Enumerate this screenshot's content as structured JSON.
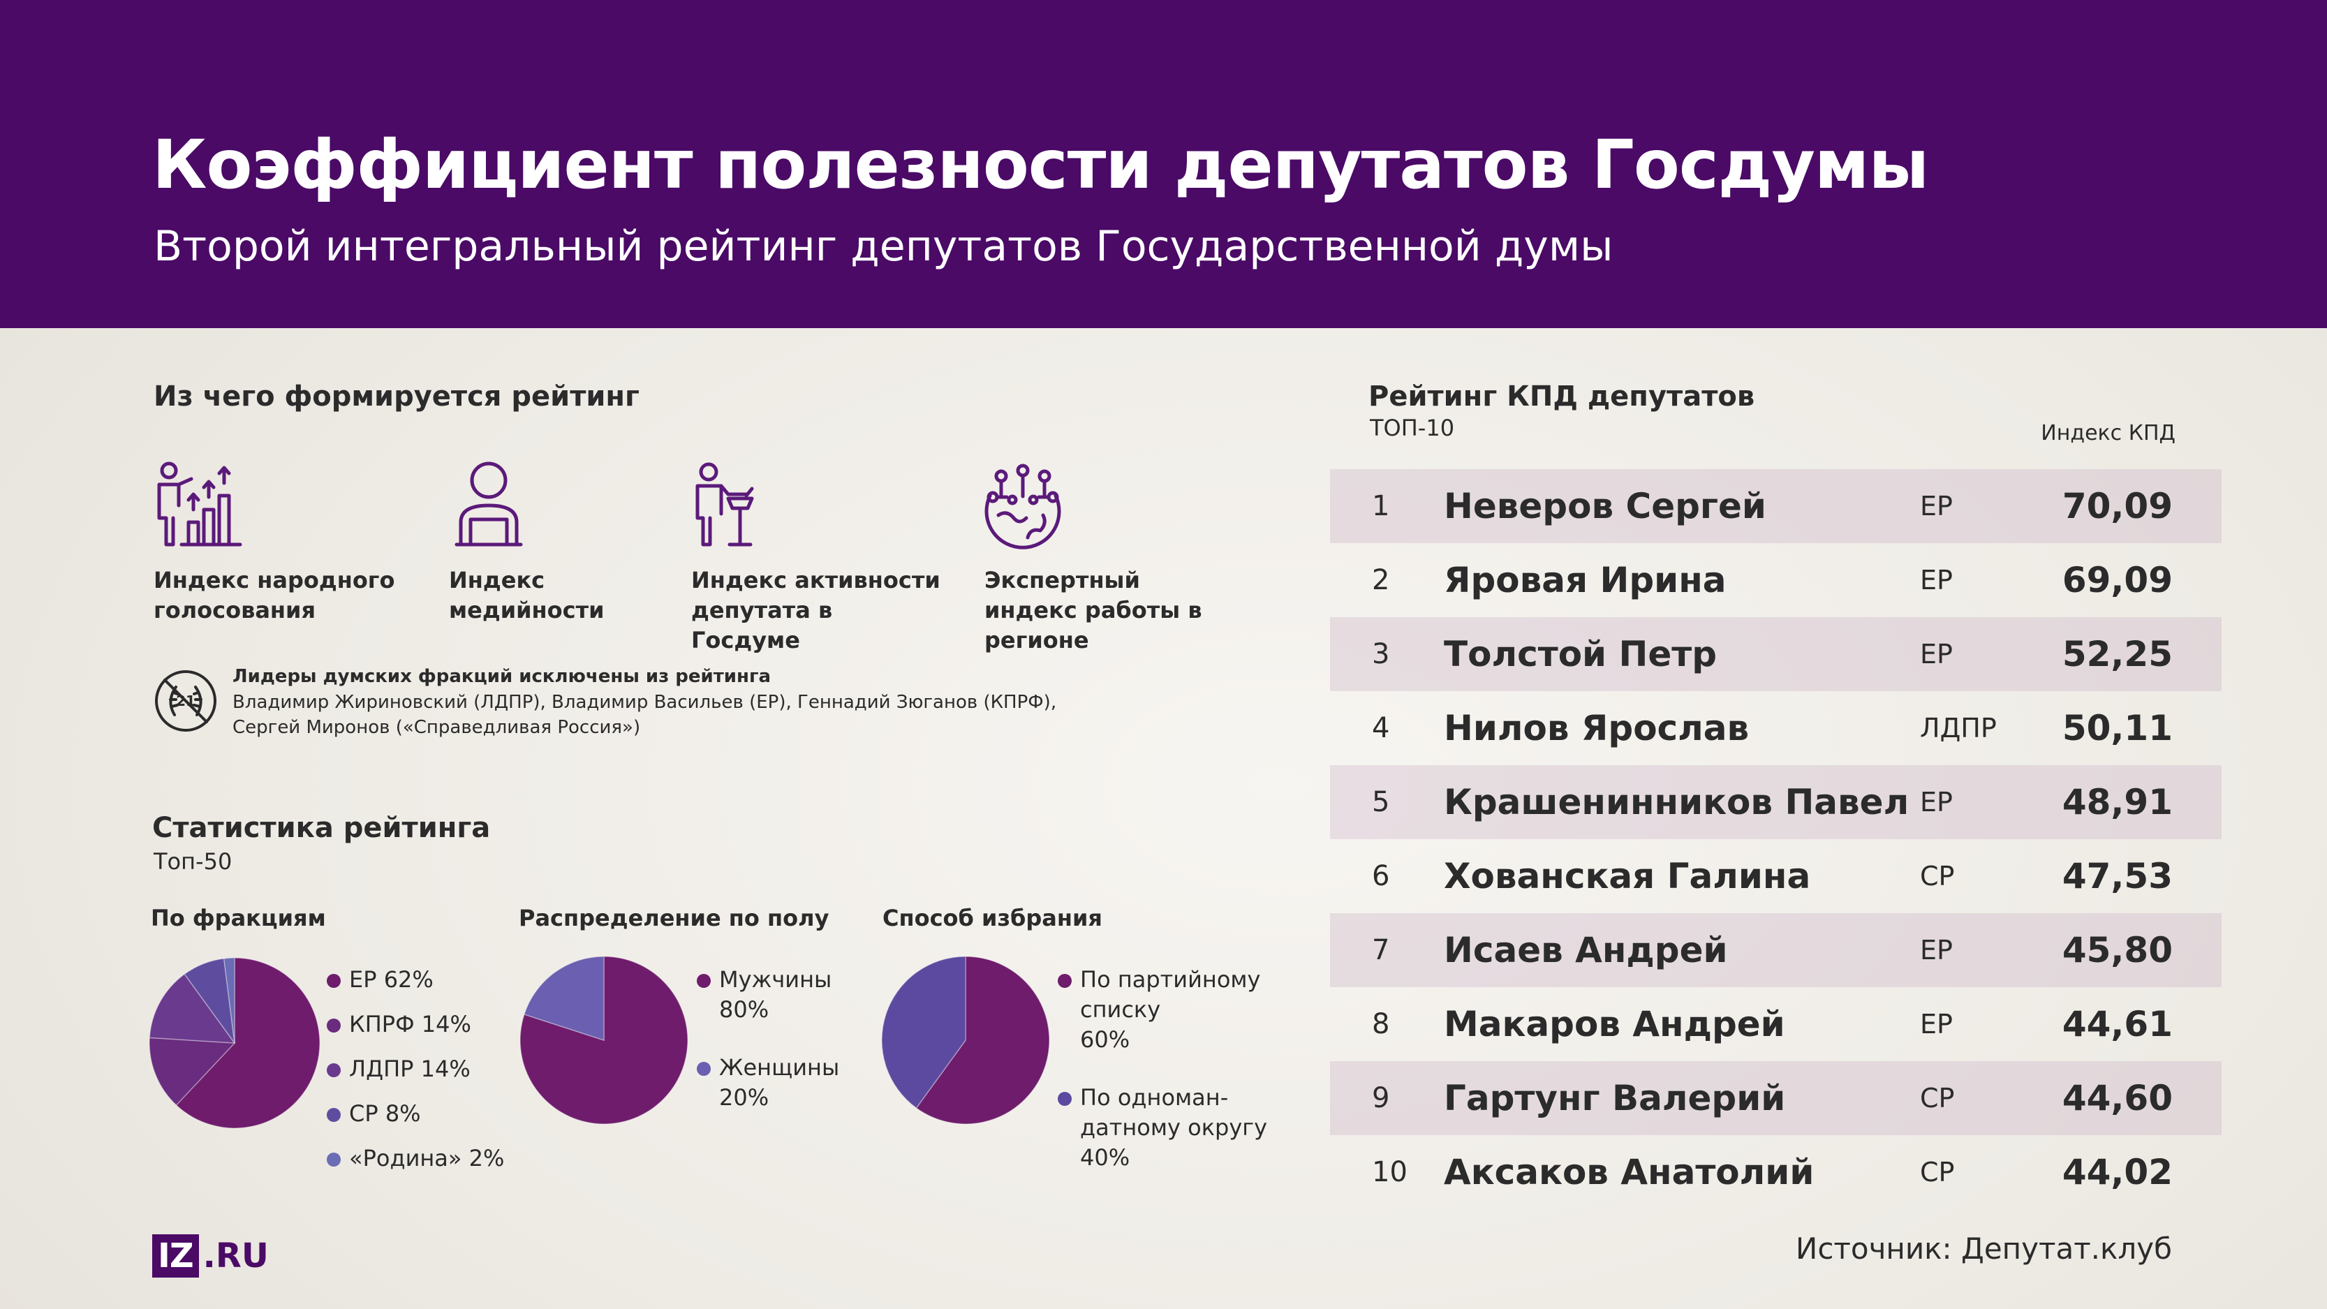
{
  "header": {
    "title": "Коэффициент полезности депутатов Госдумы",
    "subtitle": "Второй интегральный рейтинг депутатов Государственной думы"
  },
  "composition": {
    "title": "Из чего формируется рейтинг",
    "items": [
      {
        "icon": "people-voting-growth-icon",
        "label": "Индекс народного голосования"
      },
      {
        "icon": "person-at-laptop-icon",
        "label": "Индекс медийности"
      },
      {
        "icon": "speaker-at-podium-icon",
        "label": "Индекс активности депутата в Госдуме"
      },
      {
        "icon": "globe-network-icon",
        "label": "Экспертный индекс работы в регионе"
      }
    ],
    "exclusion": {
      "icon": "crossed-out-laurel-icon",
      "title": "Лидеры думских фракций исключены из рейтинга",
      "text": "Владимир Жириновский (ЛДПР), Владимир Васильев (ЕР), Геннадий Зюганов (КПРФ), Сергей Миронов («Справедливая Россия»)"
    }
  },
  "stats": {
    "title": "Статистика рейтинга",
    "subtitle": "Топ-50"
  },
  "chart_data": [
    {
      "type": "pie",
      "title": "По фракциям",
      "categories": [
        "ЕР",
        "КПРФ",
        "ЛДПР",
        "СР",
        "«Родина»"
      ],
      "values": [
        62,
        14,
        14,
        8,
        2
      ],
      "labels": [
        "ЕР 62%",
        "КПРФ 14%",
        "ЛДПР 14%",
        "СР 8%",
        "«Родина» 2%"
      ],
      "colors": [
        "#6e1c6b",
        "#6a2c7e",
        "#6a3a8e",
        "#5e4d9f",
        "#6a6cb5"
      ]
    },
    {
      "type": "pie",
      "title": "Распределение по полу",
      "categories": [
        "Мужчины",
        "Женщины"
      ],
      "values": [
        80,
        20
      ],
      "labels": [
        [
          "Мужчины",
          "80%"
        ],
        [
          "Женщины",
          "20%"
        ]
      ],
      "colors": [
        "#6e1c6b",
        "#6a5fb0"
      ]
    },
    {
      "type": "pie",
      "title": "Способ избрания",
      "categories": [
        "По партийному списку",
        "По одномандатному округу"
      ],
      "values": [
        60,
        40
      ],
      "labels": [
        [
          "По партийному",
          "списку",
          "60%"
        ],
        [
          "По одноман-",
          "датному округу",
          "40%"
        ]
      ],
      "colors": [
        "#6e1c6b",
        "#5c4aa0"
      ]
    },
    {
      "type": "table",
      "title": "Рейтинг КПД депутатов",
      "subtitle": "ТОП-10",
      "value_label": "Индекс КПД",
      "rows": [
        {
          "rank": "1",
          "name": "Неверов Сергей",
          "party": "ЕР",
          "value": "70,09"
        },
        {
          "rank": "2",
          "name": "Яровая Ирина",
          "party": "ЕР",
          "value": "69,09"
        },
        {
          "rank": "3",
          "name": "Толстой Петр",
          "party": "ЕР",
          "value": "52,25"
        },
        {
          "rank": "4",
          "name": "Нилов Ярослав",
          "party": "ЛДПР",
          "value": "50,11"
        },
        {
          "rank": "5",
          "name": "Крашенинников Павел",
          "party": "ЕР",
          "value": "48,91"
        },
        {
          "rank": "6",
          "name": "Хованская Галина",
          "party": "СР",
          "value": "47,53"
        },
        {
          "rank": "7",
          "name": "Исаев Андрей",
          "party": "ЕР",
          "value": "45,80"
        },
        {
          "rank": "8",
          "name": "Макаров Андрей",
          "party": "ЕР",
          "value": "44,61"
        },
        {
          "rank": "9",
          "name": "Гартунг Валерий",
          "party": "СР",
          "value": "44,60"
        },
        {
          "rank": "10",
          "name": "Аксаков Анатолий",
          "party": "СР",
          "value": "44,02"
        }
      ]
    }
  ],
  "footer": {
    "source": "Источник: Депутат.клуб",
    "logo_box": "IZ",
    "logo_rest": ".RU"
  },
  "colors": {
    "brand_purple": "#4a0a66",
    "icon_purple": "#5b1a7a",
    "row_shade": "#e3d6dc"
  }
}
